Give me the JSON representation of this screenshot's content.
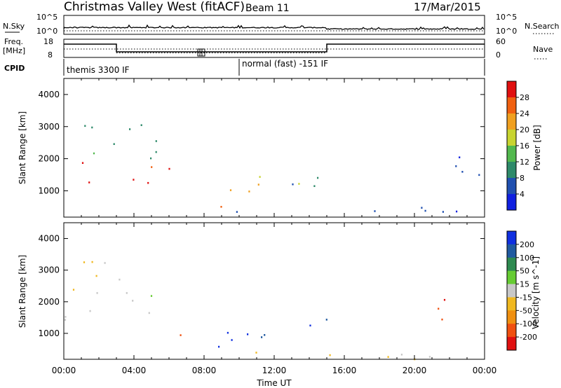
{
  "header": {
    "station": "Christmas Valley West (fitACF)",
    "beam": "Beam 11",
    "date": "17/Mar/2015"
  },
  "top_panels": {
    "nsky_label": "N.Sky",
    "nsky_ticks": [
      "10^5",
      "10^0"
    ],
    "nsearch_label": "N.Search",
    "nsearch_ticks": [
      "10^5",
      "10^0"
    ],
    "freq_label": "Freq.",
    "freq_unit": "[MHz]",
    "freq_ticks": [
      "18",
      "8"
    ],
    "nave_label": "Nave",
    "nave_ticks": [
      "60",
      "0"
    ],
    "cpid_label": "CPID",
    "cpid_modes": [
      "themis 3300 IF",
      "normal (fast) -151 IF"
    ]
  },
  "chart_data": [
    {
      "type": "heatmap",
      "title": "",
      "ylabel": "Slant Range [km]",
      "xlabel": "",
      "xlim": [
        0,
        24
      ],
      "ylim": [
        180,
        4500
      ],
      "yticks": [
        "1000",
        "2000",
        "3000",
        "4000"
      ],
      "colorbar": {
        "label": "Power [dB]",
        "ticks": [
          "4",
          "8",
          "12",
          "16",
          "20",
          "24",
          "28"
        ],
        "range": [
          0,
          30
        ],
        "colors": [
          "#1020e0",
          "#2050b0",
          "#2e8a6a",
          "#52b84e",
          "#c8d430",
          "#f0a020",
          "#f06010",
          "#e01010"
        ]
      },
      "scatter_regions": [
        {
          "t": [
            0.0,
            6.0
          ],
          "r": [
            1100,
            2000
          ],
          "level": 27
        },
        {
          "t": [
            0.0,
            6.0
          ],
          "r": [
            1900,
            2700
          ],
          "level": 10
        },
        {
          "t": [
            0.2,
            4.5
          ],
          "r": [
            2700,
            3500
          ],
          "level": 8
        },
        {
          "t": [
            7.7,
            9.8
          ],
          "r": [
            450,
            1300
          ],
          "level": 24
        },
        {
          "t": [
            9.5,
            13.6
          ],
          "r": [
            900,
            1700
          ],
          "level": 20
        },
        {
          "t": [
            13.0,
            16.0
          ],
          "r": [
            1000,
            1800
          ],
          "level": 7
        },
        {
          "t": [
            20.5,
            23.8
          ],
          "r": [
            1300,
            2400
          ],
          "level": 6
        },
        {
          "t": [
            6.5,
            24.0
          ],
          "r": [
            200,
            500
          ],
          "level": 6
        },
        {
          "t": [
            23.6,
            24.0
          ],
          "r": [
            300,
            700
          ],
          "level": 22
        }
      ]
    },
    {
      "type": "heatmap",
      "title": "",
      "ylabel": "Slant Range [km]",
      "xlabel": "Time UT",
      "xlim": [
        0,
        24
      ],
      "xticks": [
        "00:00",
        "04:00",
        "08:00",
        "12:00",
        "16:00",
        "20:00",
        "00:00"
      ],
      "ylim": [
        180,
        4500
      ],
      "yticks": [
        "1000",
        "2000",
        "3000",
        "4000"
      ],
      "colorbar": {
        "label": "Velocity [m s^-1]",
        "ticks": [
          "200",
          "100",
          "50",
          "15",
          "-15",
          "-50",
          "-100",
          "-200"
        ],
        "range": [
          -250,
          250
        ],
        "colors": [
          "#1030e0",
          "#205aa0",
          "#2e8a50",
          "#66cc33",
          "#c8c8c8",
          "#f0b820",
          "#f09010",
          "#f05010",
          "#e01010"
        ]
      },
      "scatter_regions": [
        {
          "t": [
            0.0,
            6.0
          ],
          "r": [
            1100,
            2500
          ],
          "level": 0
        },
        {
          "t": [
            0.2,
            4.5
          ],
          "r": [
            2600,
            3600
          ],
          "level": -30
        },
        {
          "t": [
            6.5,
            7.5
          ],
          "r": [
            700,
            1200
          ],
          "level": -200
        },
        {
          "t": [
            7.7,
            10.0
          ],
          "r": [
            450,
            1600
          ],
          "level": 210
        },
        {
          "t": [
            10.0,
            13.6
          ],
          "r": [
            900,
            1700
          ],
          "level": 180
        },
        {
          "t": [
            13.6,
            15.5
          ],
          "r": [
            900,
            1700
          ],
          "level": 190
        },
        {
          "t": [
            20.5,
            23.8
          ],
          "r": [
            1400,
            2100
          ],
          "level": -200
        },
        {
          "t": [
            6.5,
            24.0
          ],
          "r": [
            200,
            500
          ],
          "level": -20
        },
        {
          "t": [
            23.6,
            24.0
          ],
          "r": [
            300,
            700
          ],
          "level": -120
        }
      ]
    }
  ]
}
